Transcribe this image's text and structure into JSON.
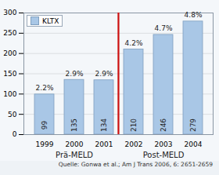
{
  "chart_data": {
    "type": "bar",
    "categories": [
      "1999",
      "2000",
      "2001",
      "2002",
      "2003",
      "2004"
    ],
    "series": [
      {
        "name": "KLTX",
        "color": "#a9c7e6",
        "values": [
          99,
          135,
          134,
          210,
          246,
          279
        ]
      }
    ],
    "ylim": [
      0,
      300
    ],
    "yticks": [
      0,
      50,
      100,
      150,
      200,
      250,
      300
    ],
    "grid": true,
    "legend": "top-left",
    "data_labels": true,
    "annotations": [
      {
        "category": "1999",
        "text": "2.2%"
      },
      {
        "category": "2000",
        "text": "2.9%"
      },
      {
        "category": "2001",
        "text": "2.9%"
      },
      {
        "category": "2002",
        "text": "4.2%"
      },
      {
        "category": "2003",
        "text": "4.7%"
      },
      {
        "category": "2004",
        "text": "4.8%"
      },
      {
        "categories": [
          "1999",
          "2000",
          "2001"
        ],
        "text": "Prä-MELD"
      },
      {
        "categories": [
          "2002",
          "2003",
          "2004"
        ],
        "text": "Post-MELD"
      }
    ],
    "caption": "Quelle: Gonwa et al.; Am J Trans 2006, 6: 2651-2659"
  }
}
